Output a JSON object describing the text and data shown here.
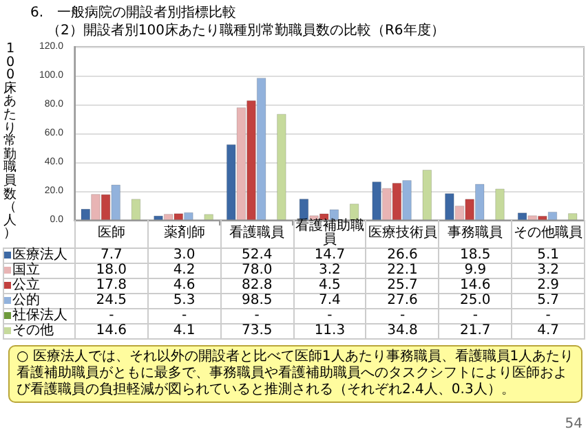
{
  "chart_data": {
    "type": "bar",
    "title": "6.　一般病院の開設者別指標比較",
    "subtitle": "（2）開設者別100床あたり職種別常勤職員数の比較（R6年度）",
    "ylabel": "100床あたり常勤職員数（人）",
    "categories": [
      "医師",
      "薬剤師",
      "看護職員",
      "看護補助職員",
      "医療技術員",
      "事務職員",
      "その他職員"
    ],
    "series": [
      {
        "name": "医療法人",
        "color": "#3c68a4",
        "values": [
          7.7,
          3.0,
          52.4,
          14.7,
          26.6,
          18.5,
          5.1
        ],
        "value_labels": [
          "7.7",
          "3.0",
          "52.4",
          "14.7",
          "26.6",
          "18.5",
          "5.1"
        ]
      },
      {
        "name": "国立",
        "color": "#e8b4b4",
        "values": [
          18.0,
          4.2,
          78.0,
          3.2,
          22.1,
          9.9,
          3.2
        ],
        "value_labels": [
          "18.0",
          "4.2",
          "78.0",
          "3.2",
          "22.1",
          "9.9",
          "3.2"
        ]
      },
      {
        "name": "公立",
        "color": "#c2413f",
        "values": [
          17.8,
          4.6,
          82.8,
          4.5,
          25.7,
          14.6,
          2.9
        ],
        "value_labels": [
          "17.8",
          "4.6",
          "82.8",
          "4.5",
          "25.7",
          "14.6",
          "2.9"
        ]
      },
      {
        "name": "公的",
        "color": "#92b2dc",
        "values": [
          24.5,
          5.3,
          98.5,
          7.4,
          27.6,
          25.0,
          5.7
        ],
        "value_labels": [
          "24.5",
          "5.3",
          "98.5",
          "7.4",
          "27.6",
          "25.0",
          "5.7"
        ]
      },
      {
        "name": "社保法人",
        "color": "#6e9a3c",
        "values": [
          null,
          null,
          null,
          null,
          null,
          null,
          null
        ],
        "value_labels": [
          "-",
          "-",
          "-",
          "-",
          "-",
          "-",
          "-"
        ]
      },
      {
        "name": "その他",
        "color": "#c6da9c",
        "values": [
          14.6,
          4.1,
          73.5,
          11.3,
          34.8,
          21.7,
          4.7
        ],
        "value_labels": [
          "14.6",
          "4.1",
          "73.5",
          "11.3",
          "34.8",
          "21.7",
          "4.7"
        ]
      }
    ],
    "ylim": [
      0,
      120
    ],
    "yticks": [
      {
        "value": 0,
        "label": "0.0"
      },
      {
        "value": 20,
        "label": "20.0"
      },
      {
        "value": 40,
        "label": "40.0"
      },
      {
        "value": 60,
        "label": "60.0"
      },
      {
        "value": 80,
        "label": "80.0"
      },
      {
        "value": 100,
        "label": "100.0"
      },
      {
        "value": 120,
        "label": "120.0"
      }
    ],
    "grid": "y",
    "legend": "bottom left",
    "annotations": [
      "○ 医療法人では、それ以外の開設者と比べて医師1人あたり事務職員、看護職員1人あたり看護補助職員がともに最多で、事務職員や看護補助職員へのタスクシフトにより医師および看護職員の負担軽減が図られていると推測される（それぞれ2.4人、0.3人）。",
      "54"
    ]
  }
}
